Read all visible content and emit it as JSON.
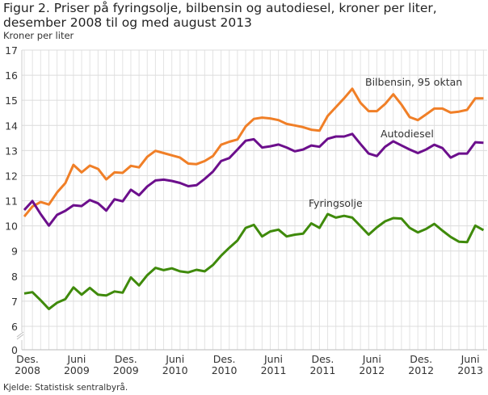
{
  "chart_data": {
    "type": "line",
    "title": "Figur 2. Priser på fyringsolje, bilbensin og autodiesel, kroner per liter, desember 2008 til og med august 2013",
    "ylabel": "Kroner per liter",
    "source": "Kjelde: Statistisk sentralbyrå.",
    "x_start": "2008-12",
    "x_end": "2013-08",
    "x_frequency": "monthly",
    "ylim": [
      0,
      17
    ],
    "y_axis_break": [
      0,
      6
    ],
    "yticks": [
      0,
      6,
      7,
      8,
      9,
      10,
      11,
      12,
      13,
      14,
      15,
      16,
      17
    ],
    "xticks": [
      {
        "month_index": 0,
        "line1": "Des.",
        "line2": "2008"
      },
      {
        "month_index": 6,
        "line1": "Juni",
        "line2": "2009"
      },
      {
        "month_index": 12,
        "line1": "Des.",
        "line2": "2009"
      },
      {
        "month_index": 18,
        "line1": "Juni",
        "line2": "2010"
      },
      {
        "month_index": 24,
        "line1": "Des.",
        "line2": "2010"
      },
      {
        "month_index": 30,
        "line1": "Juni",
        "line2": "2011"
      },
      {
        "month_index": 36,
        "line1": "Des.",
        "line2": "2011"
      },
      {
        "month_index": 42,
        "line1": "Juni",
        "line2": "2012"
      },
      {
        "month_index": 48,
        "line1": "Des.",
        "line2": "2012"
      },
      {
        "month_index": 54,
        "line1": "Juni",
        "line2": "2013"
      }
    ],
    "grid": true,
    "series": [
      {
        "name": "Bilbensin, 95 oktan",
        "color": "#f07f27",
        "values": [
          10.37,
          10.77,
          10.95,
          10.85,
          11.33,
          11.7,
          12.43,
          12.13,
          12.4,
          12.27,
          11.85,
          12.13,
          12.11,
          12.39,
          12.33,
          12.75,
          12.99,
          12.9,
          12.81,
          12.72,
          12.48,
          12.46,
          12.58,
          12.78,
          13.23,
          13.35,
          13.44,
          13.96,
          14.26,
          14.31,
          14.28,
          14.21,
          14.06,
          14.0,
          13.93,
          13.83,
          13.79,
          14.38,
          14.73,
          15.08,
          15.46,
          14.9,
          14.57,
          14.57,
          14.85,
          15.24,
          14.83,
          14.33,
          14.21,
          14.44,
          14.67,
          14.67,
          14.51,
          14.55,
          14.62,
          15.08,
          15.08
        ]
      },
      {
        "name": "Autodiesel",
        "color": "#6c0f8c",
        "values": [
          10.63,
          10.99,
          10.47,
          10.01,
          10.44,
          10.6,
          10.82,
          10.79,
          11.03,
          10.9,
          10.61,
          11.06,
          10.98,
          11.44,
          11.22,
          11.57,
          11.81,
          11.84,
          11.79,
          11.71,
          11.58,
          11.62,
          11.87,
          12.16,
          12.58,
          12.7,
          13.04,
          13.39,
          13.45,
          13.12,
          13.17,
          13.24,
          13.12,
          12.97,
          13.04,
          13.2,
          13.15,
          13.47,
          13.56,
          13.56,
          13.66,
          13.26,
          12.88,
          12.78,
          13.15,
          13.37,
          13.2,
          13.04,
          12.9,
          13.04,
          13.23,
          13.1,
          12.72,
          12.88,
          12.88,
          13.33,
          13.31
        ]
      },
      {
        "name": "Fyringsolje",
        "color": "#3f8a0b",
        "values": [
          7.31,
          7.36,
          7.04,
          6.69,
          6.94,
          7.08,
          7.55,
          7.26,
          7.53,
          7.26,
          7.23,
          7.39,
          7.34,
          7.95,
          7.63,
          8.04,
          8.33,
          8.24,
          8.31,
          8.19,
          8.15,
          8.25,
          8.19,
          8.44,
          8.81,
          9.13,
          9.42,
          9.92,
          10.04,
          9.58,
          9.78,
          9.85,
          9.58,
          9.65,
          9.69,
          10.1,
          9.92,
          10.47,
          10.33,
          10.4,
          10.33,
          9.99,
          9.65,
          9.94,
          10.18,
          10.31,
          10.29,
          9.92,
          9.74,
          9.88,
          10.08,
          9.81,
          9.56,
          9.37,
          9.35,
          10.01,
          9.83
        ]
      }
    ]
  }
}
